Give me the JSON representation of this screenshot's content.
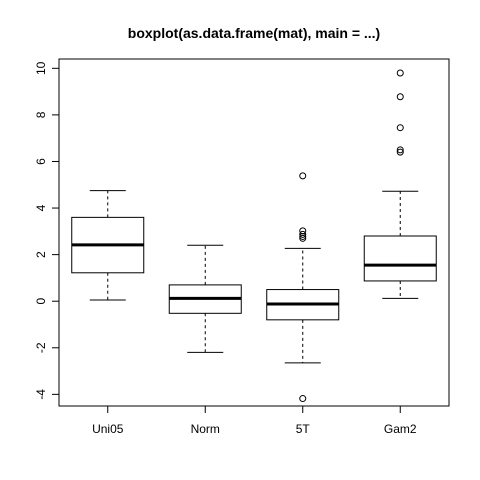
{
  "chart_data": {
    "type": "boxplot",
    "title": "boxplot(as.data.frame(mat), main = ...)",
    "xlabel": "",
    "ylabel": "",
    "ylim": [
      -4.5,
      10.4
    ],
    "yticks": [
      -4,
      -2,
      0,
      2,
      4,
      6,
      8,
      10
    ],
    "ytick_labels": [
      "-4",
      "-2",
      "0",
      "2",
      "4",
      "6",
      "8",
      "10"
    ],
    "categories": [
      "Uni05",
      "Norm",
      "5T",
      "Gam2"
    ],
    "boxes": [
      {
        "name": "Uni05",
        "whisker_low": 0.05,
        "q1": 1.22,
        "median": 2.42,
        "q3": 3.6,
        "whisker_high": 4.75,
        "outliers": []
      },
      {
        "name": "Norm",
        "whisker_low": -2.2,
        "q1": -0.52,
        "median": 0.12,
        "q3": 0.7,
        "whisker_high": 2.4,
        "outliers": []
      },
      {
        "name": "5T",
        "whisker_low": -2.65,
        "q1": -0.8,
        "median": -0.12,
        "q3": 0.5,
        "whisker_high": 2.27,
        "outliers": [
          5.38,
          3.02,
          2.87,
          2.78,
          2.7,
          -4.18
        ]
      },
      {
        "name": "Gam2",
        "whisker_low": 0.12,
        "q1": 0.87,
        "median": 1.55,
        "q3": 2.8,
        "whisker_high": 4.72,
        "outliers": [
          9.8,
          8.78,
          7.45,
          6.5,
          6.4
        ]
      }
    ],
    "grid": false,
    "legend": "none"
  }
}
